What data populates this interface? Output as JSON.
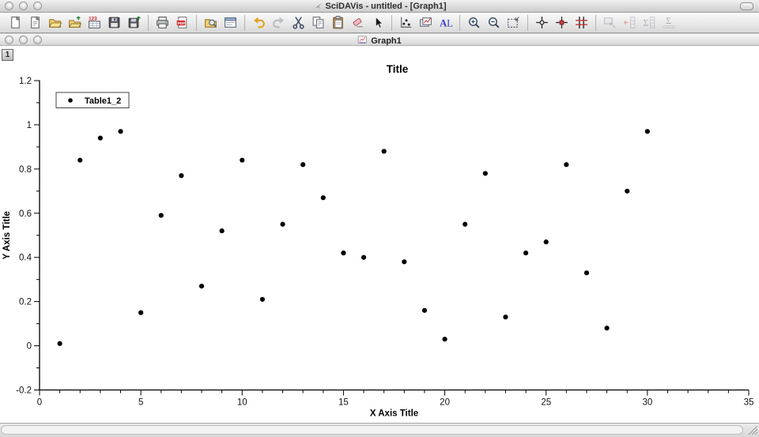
{
  "window": {
    "title": "SciDAVis - untitled - [Graph1]",
    "inner_title": "Graph1",
    "layer_button": "1"
  },
  "toolbar": {
    "groups": [
      {
        "items": [
          {
            "name": "new-project-button",
            "icon": "new-project-icon",
            "disabled": false
          },
          {
            "name": "new-note-button",
            "icon": "new-note-icon",
            "disabled": false
          },
          {
            "name": "open-project-button",
            "icon": "open-project-icon",
            "disabled": false
          },
          {
            "name": "open-template-button",
            "icon": "open-template-icon",
            "disabled": false
          },
          {
            "name": "import-ascii-button",
            "icon": "import-ascii-icon",
            "disabled": false
          },
          {
            "name": "save-project-button",
            "icon": "save-project-icon",
            "disabled": false
          },
          {
            "name": "save-template-button",
            "icon": "save-template-icon",
            "disabled": false
          }
        ]
      },
      {
        "items": [
          {
            "name": "print-button",
            "icon": "print-icon",
            "disabled": false
          },
          {
            "name": "export-pdf-button",
            "icon": "export-pdf-icon",
            "disabled": false
          }
        ]
      },
      {
        "items": [
          {
            "name": "project-explorer-button",
            "icon": "project-explorer-icon",
            "disabled": false
          },
          {
            "name": "results-log-button",
            "icon": "results-log-icon",
            "disabled": false
          }
        ]
      },
      {
        "items": [
          {
            "name": "undo-button",
            "icon": "undo-icon",
            "disabled": false
          },
          {
            "name": "redo-button",
            "icon": "redo-icon",
            "disabled": false
          },
          {
            "name": "cut-button",
            "icon": "cut-icon",
            "disabled": false
          },
          {
            "name": "copy-button",
            "icon": "copy-icon",
            "disabled": false
          },
          {
            "name": "paste-button",
            "icon": "paste-icon",
            "disabled": false
          },
          {
            "name": "delete-selection-button",
            "icon": "delete-selection-icon",
            "disabled": false
          },
          {
            "name": "pointer-button",
            "icon": "pointer-icon",
            "disabled": false
          }
        ]
      },
      {
        "items": [
          {
            "name": "add-curve-button",
            "icon": "add-curve-icon",
            "disabled": false
          },
          {
            "name": "add-function-button",
            "icon": "add-function-icon",
            "disabled": false
          },
          {
            "name": "add-text-button",
            "icon": "add-text-icon",
            "disabled": false
          }
        ]
      },
      {
        "items": [
          {
            "name": "zoom-in-button",
            "icon": "zoom-in-icon",
            "disabled": false
          },
          {
            "name": "zoom-out-button",
            "icon": "zoom-out-icon",
            "disabled": false
          },
          {
            "name": "rescale-button",
            "icon": "rescale-icon",
            "disabled": false
          }
        ]
      },
      {
        "items": [
          {
            "name": "disable-tools-button",
            "icon": "disable-tools-icon",
            "disabled": false
          },
          {
            "name": "data-reader-button",
            "icon": "data-reader-icon",
            "disabled": false
          },
          {
            "name": "select-data-range-button",
            "icon": "select-data-range-icon",
            "disabled": false
          }
        ]
      },
      {
        "items": [
          {
            "name": "screen-reader-button",
            "icon": "screen-reader-icon",
            "disabled": true
          },
          {
            "name": "move-points-button",
            "icon": "move-points-icon",
            "disabled": true
          },
          {
            "name": "column-statistics-button",
            "icon": "column-statistics-icon",
            "disabled": true
          },
          {
            "name": "row-statistics-button",
            "icon": "row-statistics-icon",
            "disabled": true
          }
        ]
      }
    ]
  },
  "chart_data": {
    "type": "scatter",
    "title": "Title",
    "xlabel": "X Axis Title",
    "ylabel": "Y Axis Title",
    "xlim": [
      0,
      35
    ],
    "ylim": [
      -0.2,
      1.2
    ],
    "xticks": [
      0,
      5,
      10,
      15,
      20,
      25,
      30,
      35
    ],
    "xtick_labels": [
      "0",
      "5",
      "10",
      "15",
      "20",
      "25",
      "30",
      "35"
    ],
    "yticks": [
      -0.2,
      0,
      0.2,
      0.4,
      0.6,
      0.8,
      1,
      1.2
    ],
    "ytick_labels": [
      "-0.2",
      "0",
      "0.2",
      "0.4",
      "0.6",
      "0.8",
      "1",
      "1.2"
    ],
    "x_minor_step": 1,
    "y_minor_step": 0.1,
    "grid": false,
    "legend_position": "top-left",
    "series": [
      {
        "name": "Table1_2",
        "marker": "filled-circle",
        "color": "#000000",
        "x": [
          1,
          2,
          3,
          4,
          5,
          6,
          7,
          8,
          9,
          10,
          11,
          12,
          13,
          14,
          15,
          16,
          17,
          18,
          19,
          20,
          21,
          22,
          23,
          24,
          25,
          26,
          27,
          28,
          29,
          30
        ],
        "y": [
          0.01,
          0.84,
          0.94,
          0.97,
          0.15,
          0.59,
          0.77,
          0.27,
          0.52,
          0.84,
          0.21,
          0.55,
          0.82,
          0.67,
          0.42,
          0.4,
          0.88,
          0.38,
          0.16,
          0.03,
          0.55,
          0.78,
          0.13,
          0.42,
          0.47,
          0.82,
          0.33,
          0.08,
          0.7,
          0.97
        ]
      }
    ]
  }
}
